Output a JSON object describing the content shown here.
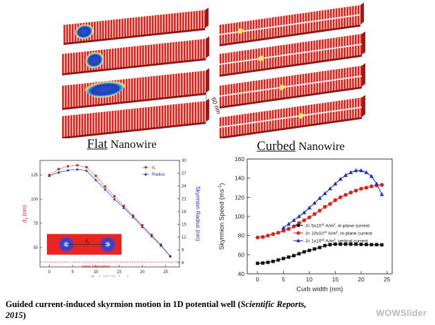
{
  "top_figure": {
    "flat_caption_first": "F",
    "flat_caption_rest": "lat",
    "flat_caption_suffix": " Nanowire",
    "curbed_caption_first": "C",
    "curbed_caption_rest": "urbed",
    "curbed_caption_suffix": " Nanowire",
    "dimension_label": "60 nm",
    "colors": {
      "stripe_red": "#d6241f",
      "stripe_white": "#f3f1ef",
      "skyrmion_core": "#1f3fb3",
      "skyrmion_rim": "#f3e36a"
    }
  },
  "chart_data": [
    {
      "type": "line",
      "x": [
        0,
        2,
        4,
        6,
        8,
        10,
        12,
        14,
        16,
        18,
        20,
        22,
        24,
        26
      ],
      "series": [
        {
          "name": "d",
          "name_subscript": "s",
          "axis": "left",
          "color": "#e02020",
          "marker": "circle",
          "values": [
            125,
            131,
            134,
            135,
            133,
            124,
            113,
            103,
            93,
            83,
            73,
            63,
            53,
            41
          ]
        },
        {
          "name": "Radius",
          "axis": "right",
          "color": "#1a2fbf",
          "marker": "triangle",
          "values": [
            26.4,
            27.2,
            27.7,
            27.9,
            27.6,
            25.4,
            23.2,
            20.9,
            18.9,
            16.7,
            14.4,
            12.2,
            10.0,
            7.5
          ]
        }
      ],
      "xlabel": "Curb Width (nm)",
      "ylabel_left": "d",
      "ylabel_left_subscript": "s",
      "ylabel_left_unit": " (nm)",
      "ylabel_right": "Skyrmion Radius (nm)",
      "xlim": [
        -2,
        28
      ],
      "ylim_left": [
        30,
        140
      ],
      "ylim_right": [
        5,
        30
      ],
      "xticks": [
        0,
        5,
        10,
        15,
        20,
        25
      ],
      "yticks_left": [
        50,
        75,
        100,
        125
      ],
      "yticks_right": [
        6,
        9,
        12,
        15,
        18,
        21,
        24,
        27,
        30
      ],
      "reference_line_value": 35,
      "reference_line_label": "Initial Separation",
      "inset_label": "d",
      "inset_label_subscript": "s",
      "legend_position": "top-right"
    },
    {
      "type": "line",
      "x": [
        0,
        1,
        2,
        3,
        4,
        5,
        6,
        7,
        8,
        9,
        10,
        11,
        12,
        13,
        14,
        15,
        16,
        17,
        18,
        19,
        20,
        21,
        22,
        23,
        24
      ],
      "series": [
        {
          "name": "J= 5x10",
          "sup": "11",
          "name_suffix": " A/m",
          "unit_sup": "2",
          "name_tail": ", in-plane current",
          "color": "#111111",
          "marker": "square",
          "values": [
            51,
            51.3,
            52,
            53,
            54.5,
            56,
            57.5,
            59,
            61,
            63,
            64.5,
            66,
            67.5,
            69.5,
            70.5,
            71,
            71,
            71,
            71,
            71,
            70.8,
            70.7,
            70.5,
            70.5,
            70.3
          ]
        },
        {
          "name": "J= 10x10",
          "sup": "11",
          "name_suffix": " A/m",
          "unit_sup": "2",
          "name_tail": ", in-plane current",
          "color": "#e02020",
          "marker": "circle",
          "values": [
            78,
            78.5,
            80,
            81.5,
            83,
            85,
            87,
            89.5,
            93,
            96,
            99,
            102.5,
            106,
            110,
            113,
            117,
            120,
            122.5,
            125,
            127,
            129,
            130,
            131.5,
            132.5,
            133
          ]
        },
        {
          "name": "J= 1x10",
          "sup": "11",
          "name_suffix": " A/m",
          "unit_sup": "2",
          "name_tail": ", vertical current",
          "color": "#1a2fbf",
          "marker": "triangle",
          "x": [
            5,
            6,
            7,
            8,
            9,
            10,
            11,
            12,
            13,
            14,
            15,
            16,
            17,
            18,
            19,
            20,
            21,
            22,
            23,
            24
          ],
          "values": [
            88,
            92,
            96,
            100,
            104,
            109,
            114,
            119,
            124,
            129,
            134,
            139,
            143,
            146,
            148,
            148,
            146,
            142,
            134,
            123
          ]
        }
      ],
      "xlabel": "Curb width (nm)",
      "ylabel": "Skyrmion Speed (ms",
      "ylabel_sup": "-1",
      "ylabel_tail": ")",
      "xlim": [
        -2,
        26
      ],
      "ylim": [
        40,
        160
      ],
      "xticks": [
        0,
        5,
        10,
        15,
        20,
        25
      ],
      "yticks": [
        40,
        60,
        80,
        100,
        120,
        140,
        160
      ],
      "legend_position": "center-right"
    }
  ],
  "caption": {
    "main": "Guided current-induced skyrmion motion in 1D potential well (",
    "journal": "Scientific Reports,",
    "year": "2015",
    "close": ")"
  },
  "watermark": "WOWSlider"
}
